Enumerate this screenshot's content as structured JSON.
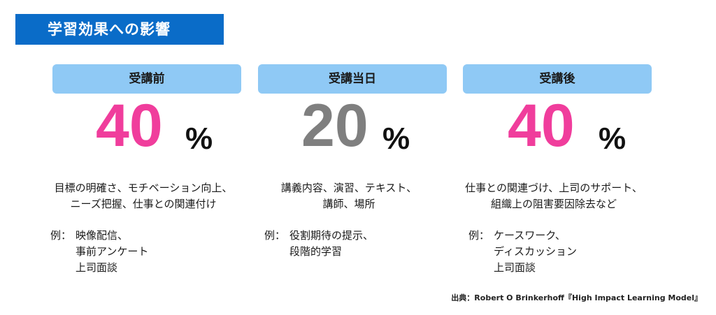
{
  "title": "学習効果への影響",
  "columns": [
    {
      "header": "受講前",
      "percent": "40",
      "percent_sign": "%",
      "percent_color": "#f03d9c",
      "description": [
        "目標の明確さ、モチベーション向上、",
        "ニーズ把握、仕事との関連付け"
      ],
      "example_prefix": "例：",
      "examples": [
        "映像配信、",
        "事前アンケート",
        "上司面談"
      ]
    },
    {
      "header": "受講当日",
      "percent": "20",
      "percent_sign": "%",
      "percent_color": "#7f7f7f",
      "description": [
        "講義内容、演習、テキスト、",
        "講師、場所"
      ],
      "example_prefix": "例：",
      "examples": [
        "役割期待の提示、",
        "段階的学習"
      ]
    },
    {
      "header": "受講後",
      "percent": "40",
      "percent_sign": "%",
      "percent_color": "#f03d9c",
      "description": [
        "仕事との関連づけ、上司のサポート、",
        "組織上の阻害要因除去など"
      ],
      "example_prefix": "例：",
      "examples": [
        "ケースワーク、",
        "ディスカッション",
        "上司面談"
      ]
    }
  ],
  "source": "出典：Robert O Brinkerhoff『High Impact Learning Model』",
  "colors": {
    "title_bg": "#0a6cc8",
    "header_bg": "#8fc9f5"
  }
}
